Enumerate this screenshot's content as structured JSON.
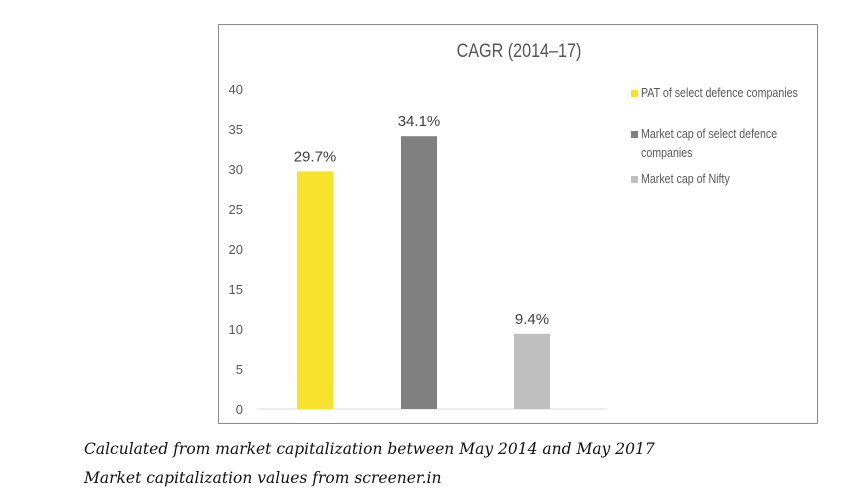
{
  "chart_data": {
    "type": "bar",
    "title": "CAGR (2014–17)",
    "categories": [
      "PAT of select defence companies",
      "Market cap of select defence companies",
      "Market cap of Nifty"
    ],
    "series": [
      {
        "name": "PAT of select defence companies",
        "value": 29.7,
        "label": "29.7%",
        "color": "#f7e22e"
      },
      {
        "name": "Market cap of select defence companies",
        "value": 34.1,
        "label": "34.1%",
        "color": "#808080"
      },
      {
        "name": "Market cap of Nifty",
        "value": 9.4,
        "label": "9.4%",
        "color": "#bfbfbf"
      }
    ],
    "legend_lines": [
      [
        "PAT of select defence companies"
      ],
      [
        "Market cap of select defence",
        "companies"
      ],
      [
        "Market cap of Nifty"
      ]
    ],
    "yticks": [
      "0",
      "5",
      "10",
      "15",
      "20",
      "25",
      "30",
      "35",
      "40"
    ],
    "ylim": [
      0,
      40
    ],
    "xlabel": "",
    "ylabel": "",
    "grid": false,
    "legend_position": "right"
  },
  "captions": [
    "Calculated from market capitalization between May 2014 and May 2017",
    "Market capitalization values from screener.in"
  ]
}
